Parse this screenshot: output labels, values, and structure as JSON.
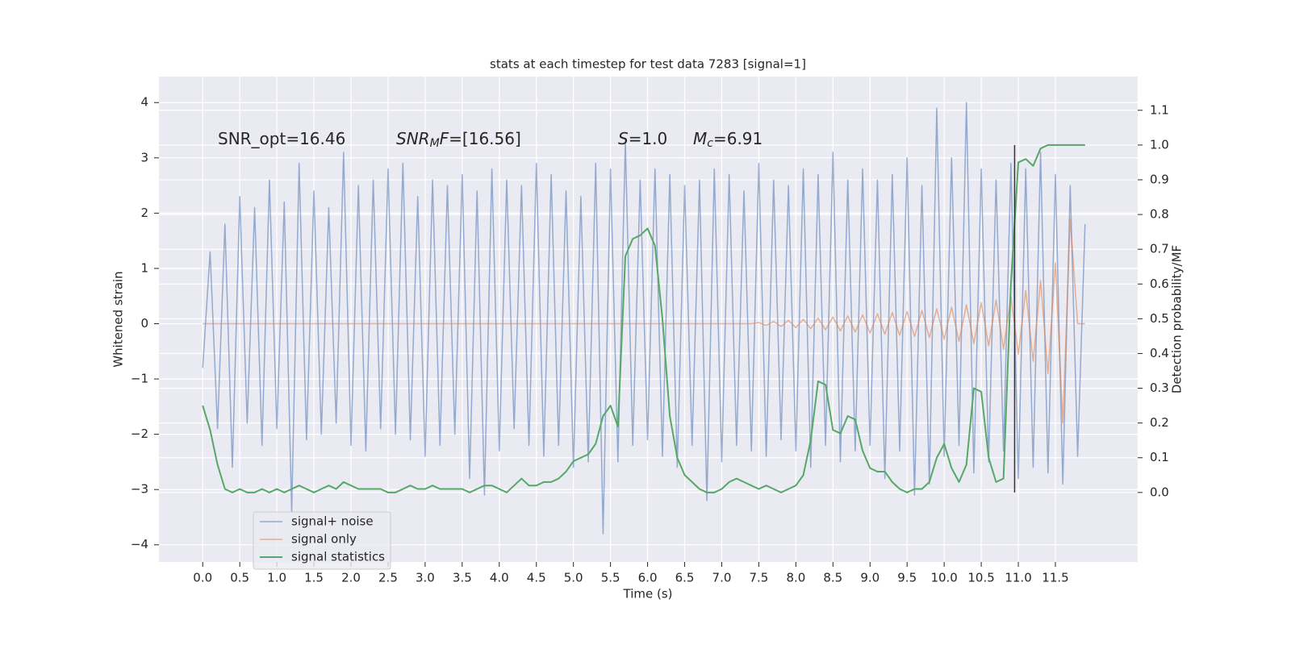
{
  "chart_data": {
    "type": "line",
    "title": "stats at each timestep for test data 7283 [signal=1]",
    "xlabel": "Time (s)",
    "ylabel": "Whitened strain",
    "y2label": "Detection probability/MF",
    "annotations": [
      {
        "parts": [
          {
            "text": "SNR_opt=16.46"
          }
        ]
      },
      {
        "parts": [
          {
            "text": "SNR",
            "italic": true
          },
          {
            "text": "M",
            "italic": true,
            "sub": true
          },
          {
            "text": "F",
            "italic": true
          },
          {
            "text": "=[16.56]"
          }
        ]
      },
      {
        "parts": [
          {
            "text": "S",
            "italic": true
          },
          {
            "text": "=1.0"
          }
        ]
      },
      {
        "parts": [
          {
            "text": "M",
            "italic": true
          },
          {
            "text": "c",
            "italic": true,
            "sub": true
          },
          {
            "text": "=6.91"
          }
        ]
      }
    ],
    "x": [
      0,
      0.1,
      0.2,
      0.3,
      0.4,
      0.5,
      0.6,
      0.7,
      0.8,
      0.9,
      1,
      1.1,
      1.2,
      1.3,
      1.4,
      1.5,
      1.6,
      1.7,
      1.8,
      1.9,
      2,
      2.1,
      2.2,
      2.3,
      2.4,
      2.5,
      2.6,
      2.7,
      2.8,
      2.9,
      3,
      3.1,
      3.2,
      3.3,
      3.4,
      3.5,
      3.6,
      3.7,
      3.8,
      3.9,
      4,
      4.1,
      4.2,
      4.3,
      4.4,
      4.5,
      4.6,
      4.7,
      4.8,
      4.9,
      5,
      5.1,
      5.2,
      5.3,
      5.4,
      5.5,
      5.6,
      5.7,
      5.8,
      5.9,
      6,
      6.1,
      6.2,
      6.3,
      6.4,
      6.5,
      6.6,
      6.7,
      6.8,
      6.9,
      7,
      7.1,
      7.2,
      7.3,
      7.4,
      7.5,
      7.6,
      7.7,
      7.8,
      7.9,
      8,
      8.1,
      8.2,
      8.3,
      8.4,
      8.5,
      8.6,
      8.7,
      8.8,
      8.9,
      9,
      9.1,
      9.2,
      9.3,
      9.4,
      9.5,
      9.6,
      9.7,
      9.8,
      9.9,
      10,
      10.1,
      10.2,
      10.3,
      10.4,
      10.5,
      10.6,
      10.7,
      10.8,
      10.9,
      11,
      11.1,
      11.2,
      11.3,
      11.4,
      11.5,
      11.6,
      11.7,
      11.8,
      11.9
    ],
    "series": [
      {
        "name": "signal+ noise",
        "color": "#4c72b0",
        "alpha": 0.55,
        "width": 1.5,
        "values": [
          -0.8,
          1.3,
          -1.9,
          1.8,
          -2.6,
          2.3,
          -1.8,
          2.1,
          -2.2,
          2.6,
          -1.9,
          2.2,
          -3.4,
          2.9,
          -2.1,
          2.4,
          -2.0,
          2.1,
          -1.8,
          3.1,
          -2.2,
          2.5,
          -2.3,
          2.6,
          -1.9,
          2.8,
          -2.0,
          2.9,
          -2.1,
          2.3,
          -2.4,
          2.6,
          -2.2,
          2.5,
          -2.0,
          2.7,
          -2.8,
          2.4,
          -3.1,
          2.8,
          -2.3,
          2.6,
          -1.9,
          2.5,
          -2.2,
          2.9,
          -2.4,
          2.7,
          -2.2,
          2.4,
          -2.6,
          2.3,
          -2.5,
          2.9,
          -3.8,
          2.8,
          -2.5,
          3.3,
          -2.2,
          2.6,
          -2.1,
          2.8,
          -2.4,
          2.7,
          -2.6,
          2.5,
          -2.2,
          2.6,
          -3.2,
          2.8,
          -2.5,
          2.7,
          -2.2,
          2.4,
          -2.3,
          2.9,
          -2.4,
          2.6,
          -2.1,
          2.5,
          -2.3,
          2.8,
          -2.6,
          2.7,
          -2.2,
          3.1,
          -2.5,
          2.6,
          -2.3,
          2.8,
          -2.2,
          2.6,
          -2.8,
          2.7,
          -2.3,
          3.0,
          -3.1,
          2.5,
          -2.9,
          3.9,
          -2.4,
          3.0,
          -2.2,
          4.0,
          -2.7,
          2.8,
          -2.5,
          2.6,
          -2.3,
          2.9,
          -2.8,
          2.8,
          -2.6,
          3.1,
          -2.7,
          2.7,
          -2.9,
          2.5,
          -2.4,
          1.8
        ]
      },
      {
        "name": "signal only",
        "color": "#dd8452",
        "alpha": 0.6,
        "width": 1.5,
        "values": [
          0,
          0,
          0,
          0,
          0,
          0,
          0,
          0,
          0,
          0,
          0,
          0,
          0,
          0,
          0,
          0,
          0,
          0,
          0,
          0,
          0,
          0,
          0,
          0,
          0,
          0,
          0,
          0,
          0,
          0,
          0,
          0,
          0,
          0,
          0,
          0,
          0,
          0,
          0,
          0,
          0,
          0,
          0,
          0,
          0,
          0,
          0,
          0,
          0,
          0,
          0,
          0,
          0,
          0,
          0,
          0,
          0,
          0,
          0,
          0,
          0,
          0,
          0,
          0,
          0,
          0,
          0,
          0,
          0,
          0,
          0,
          0,
          0,
          0,
          0,
          0.02,
          -0.03,
          0.04,
          -0.05,
          0.06,
          -0.07,
          0.08,
          -0.09,
          0.1,
          -0.11,
          0.12,
          -0.13,
          0.14,
          -0.15,
          0.16,
          -0.17,
          0.18,
          -0.19,
          0.2,
          -0.21,
          0.22,
          -0.23,
          0.24,
          -0.25,
          0.27,
          -0.28,
          0.3,
          -0.32,
          0.34,
          -0.36,
          0.38,
          -0.4,
          0.43,
          -0.46,
          0.5,
          -0.55,
          0.6,
          -0.68,
          0.78,
          -0.9,
          1.1,
          -1.8,
          1.9,
          0,
          0
        ]
      },
      {
        "name": "signal statistics",
        "color": "#55a868",
        "alpha": 1,
        "width": 2,
        "axis": "y2",
        "values": [
          0.25,
          0.18,
          0.08,
          0.01,
          0.0,
          0.01,
          0.0,
          0.0,
          0.01,
          0.0,
          0.01,
          0.0,
          0.01,
          0.02,
          0.01,
          0.0,
          0.01,
          0.02,
          0.01,
          0.03,
          0.02,
          0.01,
          0.01,
          0.01,
          0.01,
          0.0,
          0.0,
          0.01,
          0.02,
          0.01,
          0.01,
          0.02,
          0.01,
          0.01,
          0.01,
          0.01,
          0.0,
          0.01,
          0.02,
          0.02,
          0.01,
          0.0,
          0.02,
          0.04,
          0.02,
          0.02,
          0.03,
          0.03,
          0.04,
          0.06,
          0.09,
          0.1,
          0.11,
          0.14,
          0.22,
          0.25,
          0.19,
          0.68,
          0.73,
          0.74,
          0.76,
          0.71,
          0.5,
          0.22,
          0.1,
          0.05,
          0.03,
          0.01,
          0.0,
          0.0,
          0.01,
          0.03,
          0.04,
          0.03,
          0.02,
          0.01,
          0.02,
          0.01,
          0.0,
          0.01,
          0.02,
          0.05,
          0.15,
          0.32,
          0.31,
          0.18,
          0.17,
          0.22,
          0.21,
          0.12,
          0.07,
          0.06,
          0.06,
          0.03,
          0.01,
          0.0,
          0.01,
          0.01,
          0.03,
          0.1,
          0.14,
          0.07,
          0.03,
          0.08,
          0.3,
          0.29,
          0.1,
          0.03,
          0.04,
          0.6,
          0.95,
          0.96,
          0.94,
          0.99,
          1.0,
          1.0,
          1.0,
          1.0,
          1.0,
          1.0
        ]
      }
    ],
    "vline": {
      "x": 10.95,
      "range": [
        0,
        1
      ],
      "color": "#333333"
    },
    "xlim": [
      -0.59,
      12.61
    ],
    "ylim": [
      -4.31,
      4.47
    ],
    "y2lim": [
      -0.2,
      1.197
    ],
    "xticks": [
      {
        "value": 0,
        "label": "0.0"
      },
      0.5,
      {
        "value": 1,
        "label": "1.0"
      },
      1.5,
      {
        "value": 2,
        "label": "2.0"
      },
      2.5,
      {
        "value": 3,
        "label": "3.0"
      },
      3.5,
      {
        "value": 4,
        "label": "4.0"
      },
      4.5,
      {
        "value": 5,
        "label": "5.0"
      },
      5.5,
      {
        "value": 6,
        "label": "6.0"
      },
      6.5,
      {
        "value": 7,
        "label": "7.0"
      },
      7.5,
      {
        "value": 8,
        "label": "8.0"
      },
      8.5,
      {
        "value": 9,
        "label": "9.0"
      },
      9.5,
      {
        "value": 10,
        "label": "10.0"
      },
      10.5,
      {
        "value": 11,
        "label": "11.0"
      },
      11.5
    ],
    "yticks": [
      {
        "value": -4,
        "label": "−4"
      },
      {
        "value": -3,
        "label": "−3"
      },
      {
        "value": -2,
        "label": "−2"
      },
      {
        "value": -1,
        "label": "−1"
      },
      0,
      1,
      2,
      3,
      4
    ],
    "y2ticks": [
      {
        "value": 0,
        "label": "0.0"
      },
      0.1,
      0.2,
      0.3,
      0.4,
      0.5,
      0.6,
      0.7,
      0.8,
      0.9,
      {
        "value": 1,
        "label": "1.0"
      },
      1.1
    ],
    "grid": true,
    "background": "#eaeaf2",
    "legend": "lower left"
  }
}
